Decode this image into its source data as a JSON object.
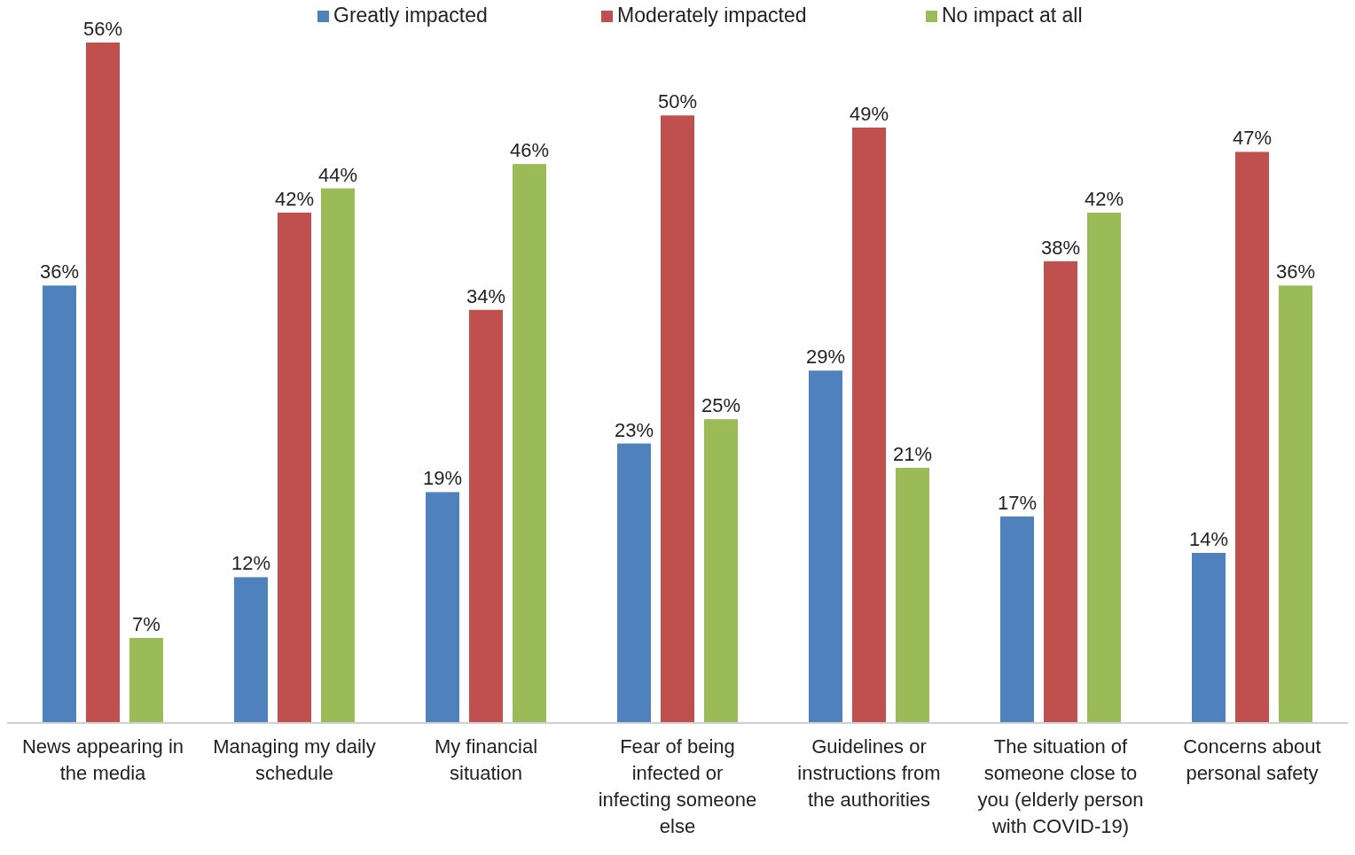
{
  "chart_data": {
    "type": "bar",
    "categories": [
      "News appearing in the media",
      "Managing my daily schedule",
      "My financial situation",
      "Fear of being infected or infecting someone else",
      "Guidelines or instructions from the authorities",
      "The situation of someone close to you (elderly person with COVID-19)",
      "Concerns about personal safety"
    ],
    "series": [
      {
        "name": "Greatly impacted",
        "color": "#4f81bd",
        "values": [
          36,
          12,
          19,
          23,
          29,
          17,
          14
        ],
        "value_labels": [
          "36%",
          "12%",
          "19%",
          "23%",
          "29%",
          "17%",
          "14%"
        ]
      },
      {
        "name": "Moderately impacted",
        "color": "#c0504d",
        "values": [
          56,
          42,
          34,
          50,
          49,
          38,
          47
        ],
        "value_labels": [
          "56%",
          "42%",
          "34%",
          "50%",
          "49%",
          "38%",
          "47%"
        ]
      },
      {
        "name": "No impact at all",
        "color": "#9bbb59",
        "values": [
          7,
          44,
          46,
          25,
          21,
          42,
          36
        ],
        "value_labels": [
          "7%",
          "44%",
          "46%",
          "25%",
          "21%",
          "42%",
          "36%"
        ]
      }
    ],
    "legend": "top"
  }
}
